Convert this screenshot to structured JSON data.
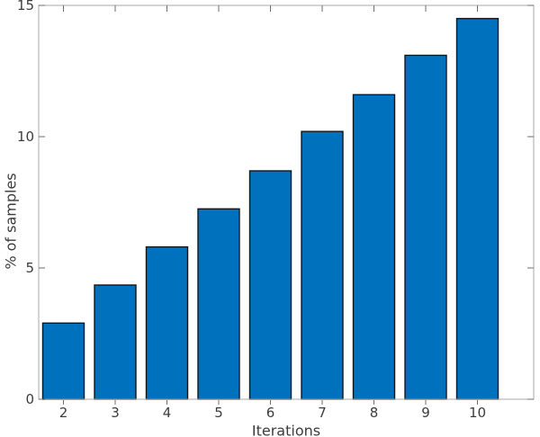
{
  "chart_data": {
    "type": "bar",
    "title": "",
    "categories": [
      2,
      3,
      4,
      5,
      6,
      7,
      8,
      9,
      10
    ],
    "values": [
      2.9,
      4.35,
      5.8,
      7.25,
      8.7,
      10.2,
      11.6,
      13.1,
      14.5
    ],
    "xlabel": "Iterations",
    "ylabel": "% of samples",
    "xlim_categories": "half-bar padding left, wider right margin",
    "ylim": [
      0,
      15
    ],
    "yticks": [
      0,
      5,
      10,
      15
    ],
    "grid": false,
    "legend": null,
    "bar_width_fraction": 0.8,
    "colors": {
      "bar_fill": "#0072bd",
      "bar_edge": "#11161c",
      "spine": "#a8a8a8",
      "tick": "#6e6e6e",
      "text": "#3c3c3c",
      "background": "#ffffff"
    }
  }
}
